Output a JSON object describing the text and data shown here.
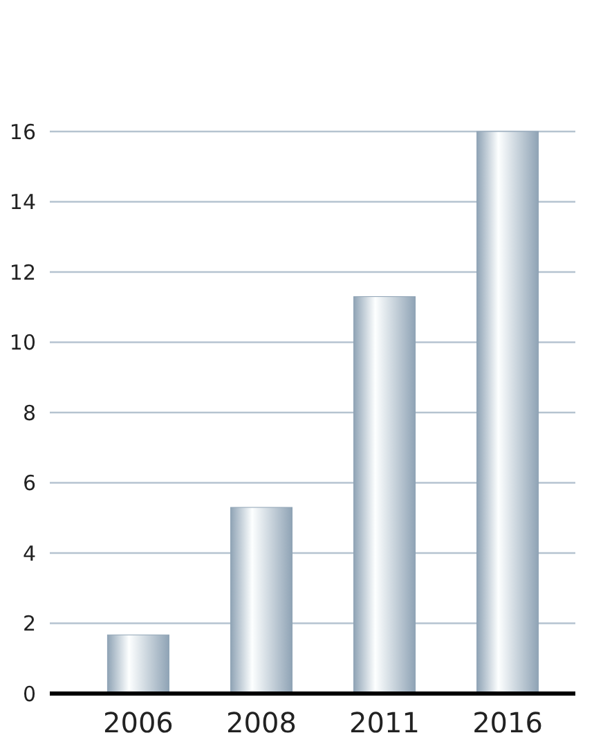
{
  "chart_data": {
    "type": "bar",
    "categories": [
      "2006",
      "2008",
      "2011",
      "2016"
    ],
    "values": [
      1.67,
      5.3,
      11.3,
      16
    ],
    "color": "#8fa3b5",
    "ylim": [
      0,
      16
    ],
    "yticks": [
      0,
      2,
      4,
      6,
      8,
      10,
      12,
      14,
      16
    ],
    "grid": "y"
  }
}
